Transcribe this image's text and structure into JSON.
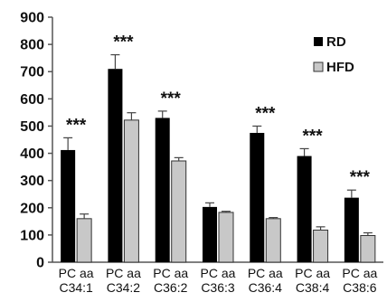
{
  "chart_data": {
    "type": "bar",
    "categories": [
      [
        "PC aa",
        "C34:1"
      ],
      [
        "PC aa",
        "C34:2"
      ],
      [
        "PC aa",
        "C36:2"
      ],
      [
        "PC aa",
        "C36:3"
      ],
      [
        "PC aa",
        "C36:4"
      ],
      [
        "PC aa",
        "C38:4"
      ],
      [
        "PC aa",
        "C38:6"
      ]
    ],
    "series": [
      {
        "name": "RD",
        "color": "#000000",
        "values": [
          412,
          710,
          530,
          203,
          475,
          390,
          237
        ],
        "errors": [
          45,
          52,
          25,
          15,
          25,
          27,
          28
        ]
      },
      {
        "name": "HFD",
        "color": "#c8c8c8",
        "values": [
          160,
          522,
          372,
          183,
          160,
          118,
          98
        ],
        "errors": [
          17,
          27,
          12,
          4,
          4,
          12,
          10
        ]
      }
    ],
    "significance": [
      "***",
      "***",
      "***",
      "",
      "***",
      "***",
      "***"
    ],
    "yticks": [
      "0",
      "100",
      "200",
      "300",
      "400",
      "500",
      "600",
      "700",
      "800",
      "900"
    ],
    "ylim": [
      0,
      900
    ],
    "legend_position": "top-right",
    "grid": false
  }
}
